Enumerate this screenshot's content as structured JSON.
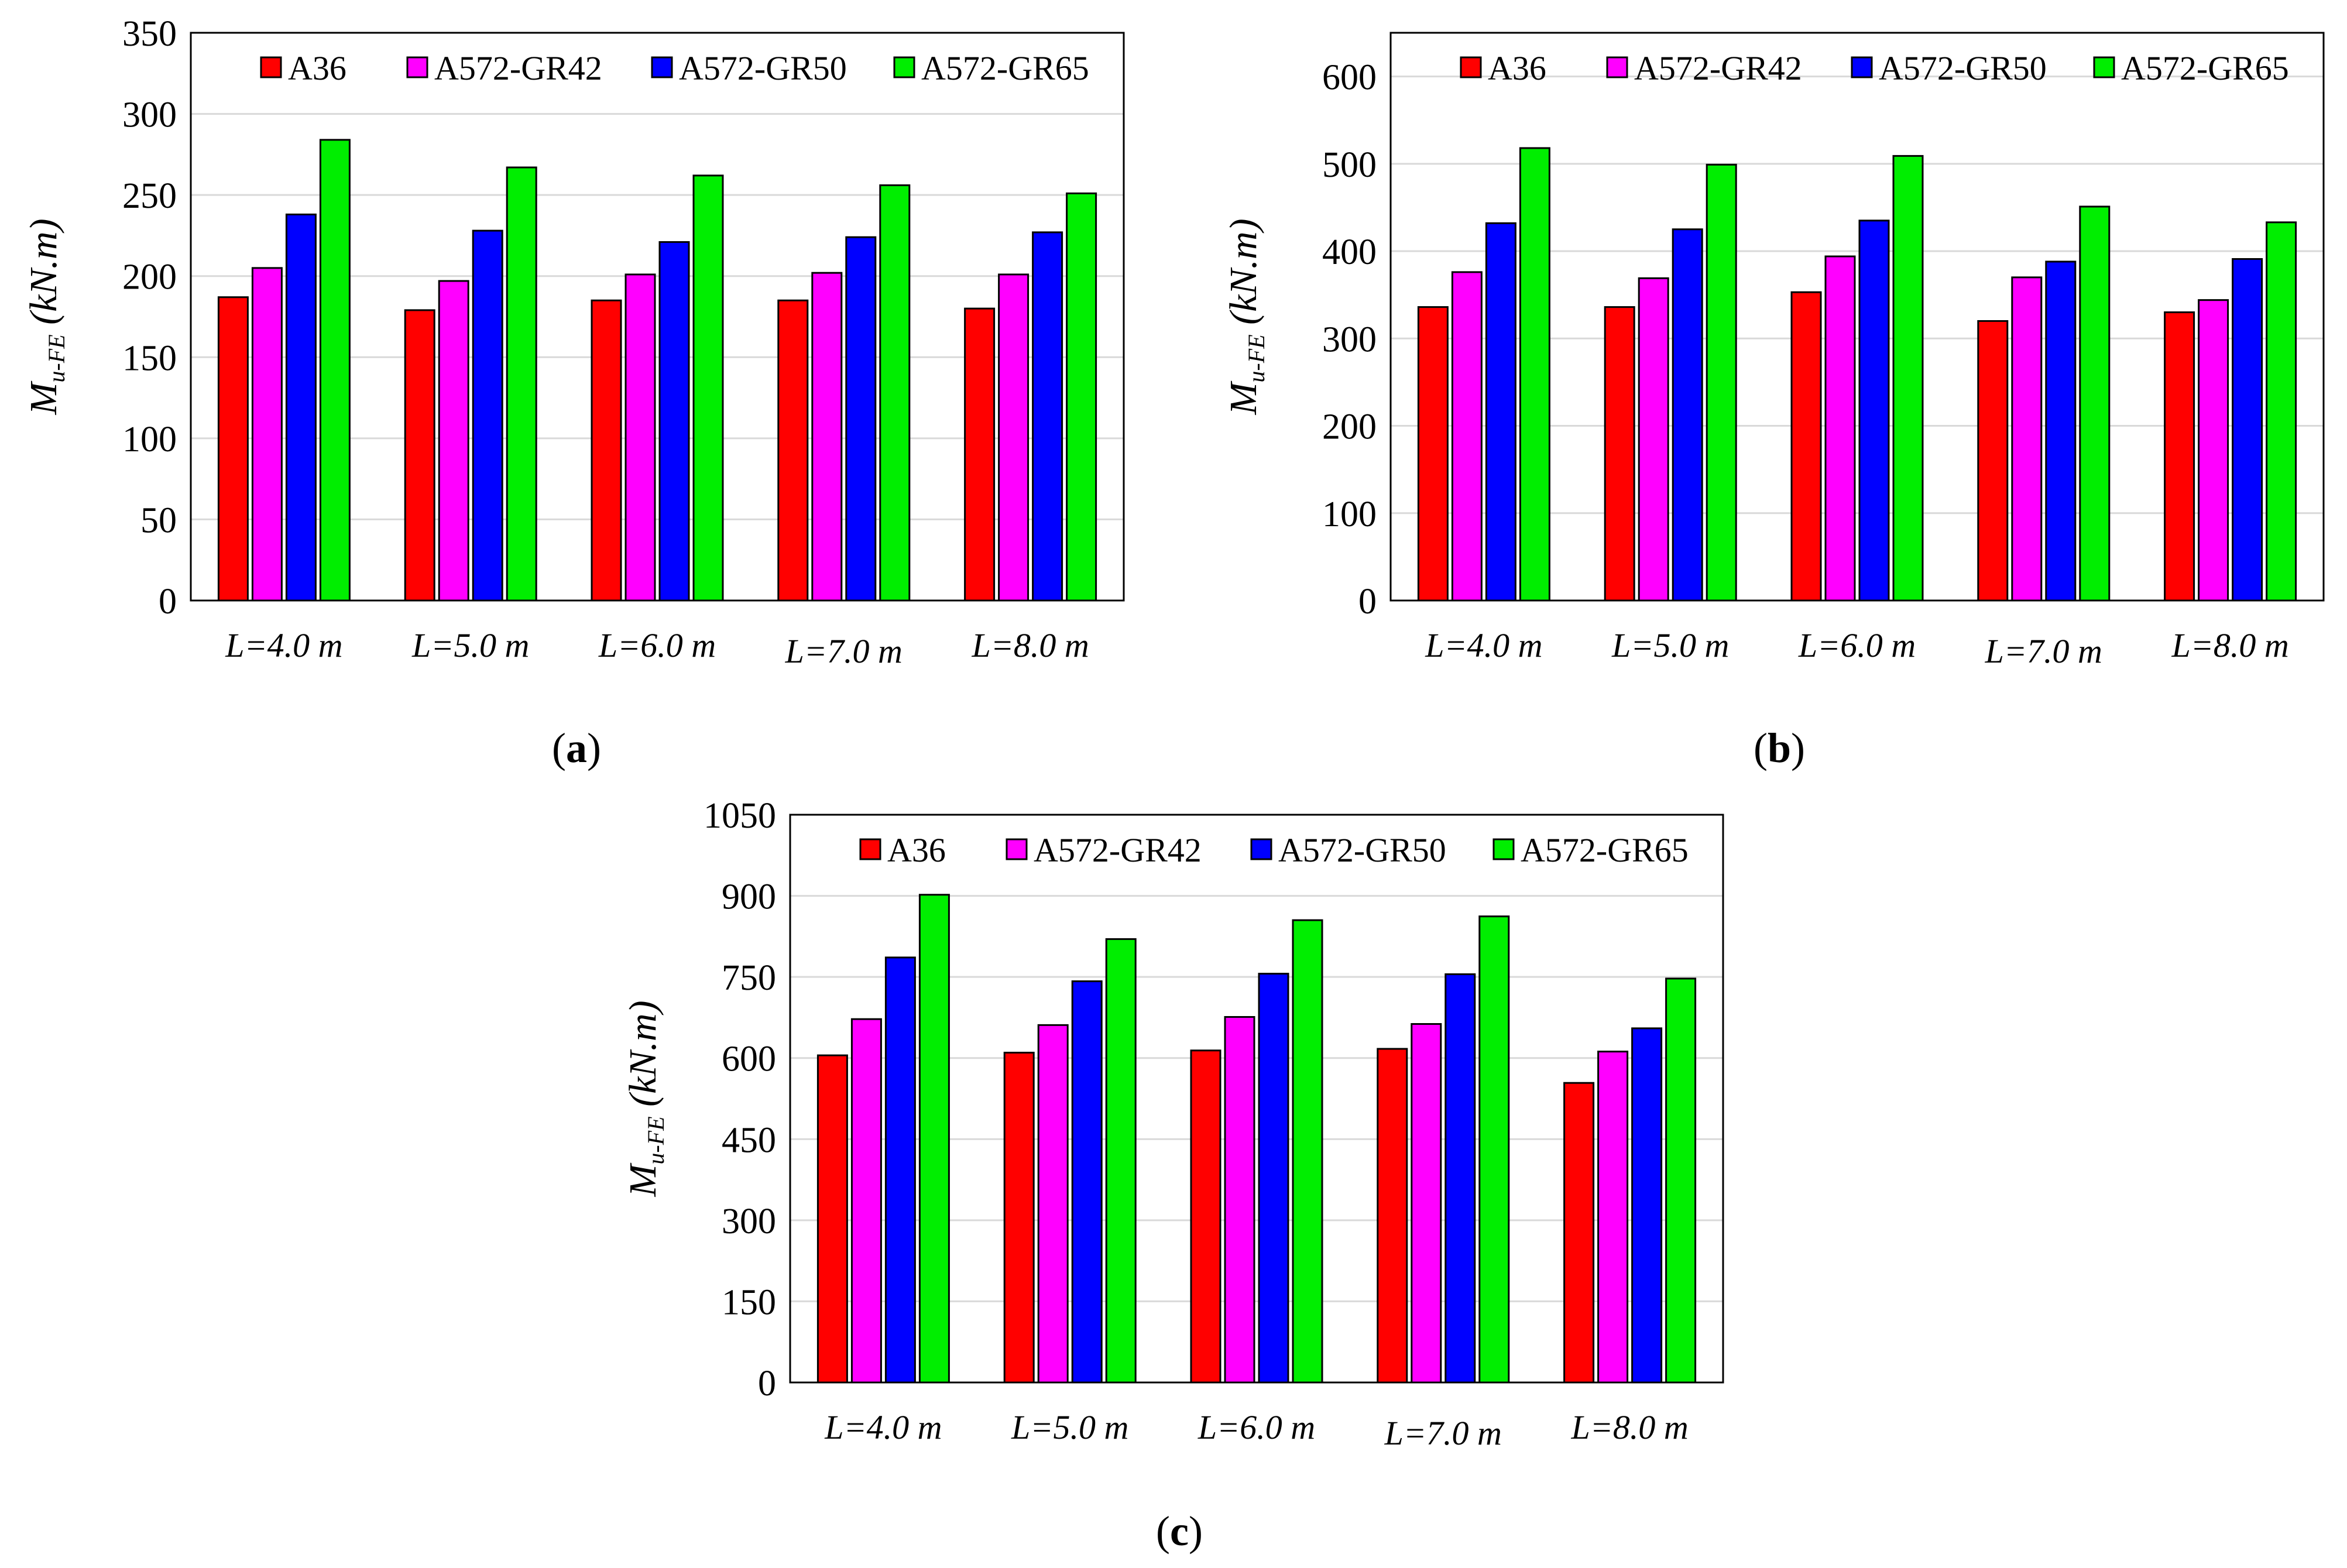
{
  "figure_labels": [
    "a",
    "b",
    "c"
  ],
  "chart_data": [
    {
      "type": "bar",
      "panel": "a",
      "title": "",
      "xlabel": "",
      "ylabel": {
        "main": "M",
        "subscript": "u-FE",
        "unit": " (kN.m)"
      },
      "ylim": [
        0,
        350
      ],
      "yticks": [
        0,
        50,
        100,
        150,
        200,
        250,
        300,
        350
      ],
      "grid": true,
      "legend": "top",
      "categories": [
        "L=4.0 m",
        "L=5.0 m",
        "L=6.0 m",
        "L=7.0 m",
        "L=8.0 m"
      ],
      "series": [
        {
          "name": "A36",
          "color": "#ff0000",
          "values": [
            187,
            179,
            185,
            185,
            180
          ]
        },
        {
          "name": "A572-GR42",
          "color": "#ff00ff",
          "values": [
            205,
            197,
            201,
            202,
            201
          ]
        },
        {
          "name": "A572-GR50",
          "color": "#0000ff",
          "values": [
            238,
            228,
            221,
            224,
            227
          ]
        },
        {
          "name": "A572-GR65",
          "color": "#00ee00",
          "values": [
            284,
            267,
            262,
            256,
            251
          ]
        }
      ]
    },
    {
      "type": "bar",
      "panel": "b",
      "title": "",
      "xlabel": "",
      "ylabel": {
        "main": "M",
        "subscript": "u-FE",
        "unit": " (kN.m)"
      },
      "ylim": [
        0,
        650
      ],
      "yticks": [
        0,
        100,
        200,
        300,
        400,
        500,
        600
      ],
      "grid": true,
      "legend": "top",
      "categories": [
        "L=4.0 m",
        "L=5.0 m",
        "L=6.0 m",
        "L=7.0 m",
        "L=8.0 m"
      ],
      "series": [
        {
          "name": "A36",
          "color": "#ff0000",
          "values": [
            336,
            336,
            353,
            320,
            330
          ]
        },
        {
          "name": "A572-GR42",
          "color": "#ff00ff",
          "values": [
            376,
            369,
            394,
            370,
            344
          ]
        },
        {
          "name": "A572-GR50",
          "color": "#0000ff",
          "values": [
            432,
            425,
            435,
            388,
            391
          ]
        },
        {
          "name": "A572-GR65",
          "color": "#00ee00",
          "values": [
            518,
            499,
            509,
            451,
            433
          ]
        }
      ]
    },
    {
      "type": "bar",
      "panel": "c",
      "title": "",
      "xlabel": "",
      "ylabel": {
        "main": "M",
        "subscript": "u-FE",
        "unit": " (kN.m)"
      },
      "ylim": [
        0,
        1050
      ],
      "yticks": [
        0,
        150,
        300,
        450,
        600,
        750,
        900,
        1050
      ],
      "grid": true,
      "legend": "top",
      "categories": [
        "L=4.0 m",
        "L=5.0 m",
        "L=6.0 m",
        "L=7.0 m",
        "L=8.0 m"
      ],
      "series": [
        {
          "name": "A36",
          "color": "#ff0000",
          "values": [
            605,
            610,
            614,
            617,
            554
          ]
        },
        {
          "name": "A572-GR42",
          "color": "#ff00ff",
          "values": [
            672,
            661,
            676,
            663,
            612
          ]
        },
        {
          "name": "A572-GR50",
          "color": "#0000ff",
          "values": [
            786,
            742,
            756,
            755,
            655
          ]
        },
        {
          "name": "A572-GR65",
          "color": "#00ee00",
          "values": [
            902,
            820,
            855,
            862,
            747
          ]
        }
      ]
    }
  ]
}
